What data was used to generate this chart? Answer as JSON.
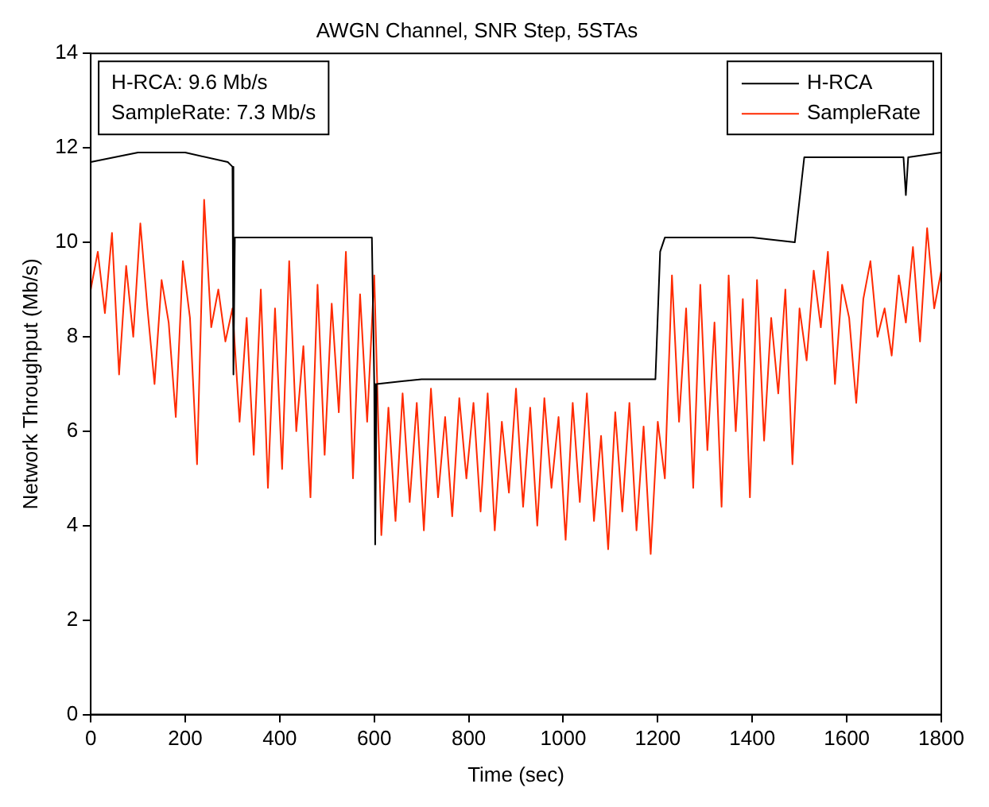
{
  "chart_data": {
    "type": "line",
    "title": "AWGN Channel, SNR Step, 5STAs",
    "xlabel": "Time (sec)",
    "ylabel": "Network Throughput (Mb/s)",
    "annotations": [
      "H-RCA: 9.6 Mb/s",
      "SampleRate: 7.3 Mb/s"
    ],
    "xlim": [
      0,
      1800
    ],
    "xticks": [
      0,
      200,
      400,
      600,
      800,
      1000,
      1200,
      1400,
      1600,
      1800
    ],
    "ylim": [
      0,
      14
    ],
    "yticks": [
      0,
      2,
      4,
      6,
      8,
      10,
      12,
      14
    ],
    "grid": false,
    "legend": "top right",
    "marker": "none",
    "line_style": "solid",
    "series": [
      {
        "name": "H-RCA",
        "color": "#000000",
        "x": [
          0,
          50,
          100,
          200,
          290,
          300,
          302,
          305,
          400,
          500,
          595,
          600,
          602,
          605,
          700,
          800,
          900,
          1000,
          1100,
          1195,
          1205,
          1215,
          1300,
          1400,
          1490,
          1510,
          1600,
          1720,
          1725,
          1730,
          1800
        ],
        "values": [
          11.7,
          11.8,
          11.9,
          11.9,
          11.7,
          11.6,
          7.2,
          10.1,
          10.1,
          10.1,
          10.1,
          7.0,
          3.6,
          7.0,
          7.1,
          7.1,
          7.1,
          7.1,
          7.1,
          7.1,
          9.8,
          10.1,
          10.1,
          10.1,
          10.0,
          11.8,
          11.8,
          11.8,
          11.0,
          11.8,
          11.9
        ]
      },
      {
        "name": "SampleRate",
        "color": "#ff2a00",
        "x": [
          0,
          15,
          30,
          45,
          60,
          75,
          90,
          105,
          120,
          135,
          150,
          165,
          180,
          195,
          210,
          225,
          240,
          255,
          270,
          285,
          300,
          315,
          330,
          345,
          360,
          375,
          390,
          405,
          420,
          435,
          450,
          465,
          480,
          495,
          510,
          525,
          540,
          555,
          570,
          585,
          600,
          615,
          630,
          645,
          660,
          675,
          690,
          705,
          720,
          735,
          750,
          765,
          780,
          795,
          810,
          825,
          840,
          855,
          870,
          885,
          900,
          915,
          930,
          945,
          960,
          975,
          990,
          1005,
          1020,
          1035,
          1050,
          1065,
          1080,
          1095,
          1110,
          1125,
          1140,
          1155,
          1170,
          1185,
          1200,
          1215,
          1230,
          1245,
          1260,
          1275,
          1290,
          1305,
          1320,
          1335,
          1350,
          1365,
          1380,
          1395,
          1410,
          1425,
          1440,
          1455,
          1470,
          1485,
          1500,
          1515,
          1530,
          1545,
          1560,
          1575,
          1590,
          1605,
          1620,
          1635,
          1650,
          1665,
          1680,
          1695,
          1710,
          1725,
          1740,
          1755,
          1770,
          1785,
          1800
        ],
        "values": [
          9.0,
          9.8,
          8.5,
          10.2,
          7.2,
          9.5,
          8.0,
          10.4,
          8.6,
          7.0,
          9.2,
          8.3,
          6.3,
          9.6,
          8.4,
          5.3,
          10.9,
          8.2,
          9.0,
          7.9,
          8.6,
          6.2,
          8.4,
          5.5,
          9.0,
          4.8,
          8.6,
          5.2,
          9.6,
          6.0,
          7.8,
          4.6,
          9.1,
          5.5,
          8.7,
          6.4,
          9.8,
          5.0,
          8.9,
          6.2,
          9.3,
          3.8,
          6.5,
          4.1,
          6.8,
          4.5,
          6.6,
          3.9,
          6.9,
          4.6,
          6.3,
          4.2,
          6.7,
          5.0,
          6.6,
          4.3,
          6.8,
          3.9,
          6.2,
          4.7,
          6.9,
          4.4,
          6.5,
          4.0,
          6.7,
          4.8,
          6.3,
          3.7,
          6.6,
          4.5,
          6.8,
          4.1,
          5.9,
          3.5,
          6.4,
          4.3,
          6.6,
          3.9,
          6.1,
          3.4,
          6.2,
          5.0,
          9.3,
          6.2,
          8.6,
          4.8,
          9.1,
          5.6,
          8.3,
          4.4,
          9.3,
          6.0,
          8.8,
          4.6,
          9.2,
          5.8,
          8.4,
          6.8,
          9.0,
          5.3,
          8.6,
          7.5,
          9.4,
          8.2,
          9.8,
          7.0,
          9.1,
          8.4,
          6.6,
          8.8,
          9.6,
          8.0,
          8.6,
          7.6,
          9.3,
          8.3,
          9.9,
          7.9,
          10.3,
          8.6,
          9.4
        ]
      }
    ]
  }
}
